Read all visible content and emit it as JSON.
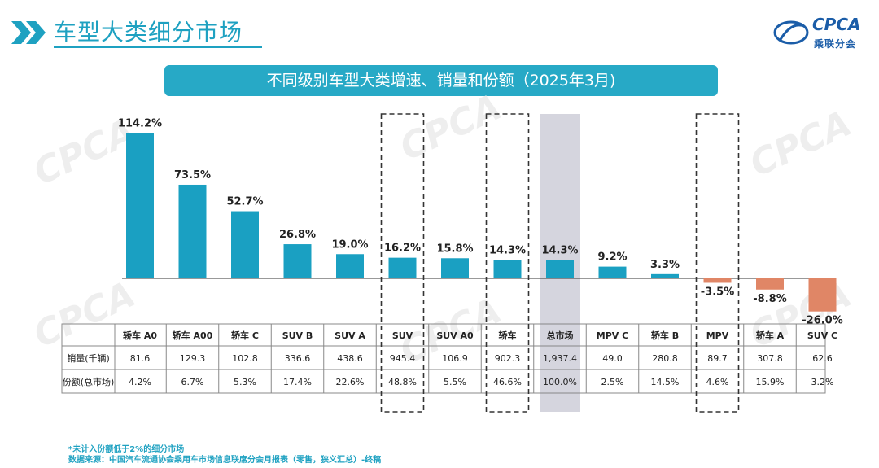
{
  "header": {
    "title": "车型大类细分市场",
    "logo_text": "CPCA",
    "logo_sub": "乘联分会"
  },
  "banner": {
    "text": "不同级别车型大类增速、销量和份额（2025年3月)"
  },
  "watermark_text": "CPCA",
  "colors": {
    "accent": "#1ea1c1",
    "positive_bar": "#1aa0c2",
    "negative_bar": "#e08666",
    "highlight_bg": "#d5d5de",
    "logo": "#1b5da8"
  },
  "chart_data": {
    "type": "bar",
    "categories": [
      "轿车 A0",
      "轿车 A00",
      "轿车 C",
      "SUV B",
      "SUV A",
      "SUV",
      "SUV A0",
      "轿车",
      "总市场",
      "MPV C",
      "轿车 B",
      "MPV",
      "轿车 A",
      "SUV C"
    ],
    "series": [
      {
        "values": [
          114.2,
          73.5,
          52.7,
          26.8,
          19.0,
          16.2,
          15.8,
          14.3,
          14.3,
          9.2,
          3.3,
          -3.5,
          -8.8,
          -26.0
        ]
      }
    ],
    "value_labels": [
      "114.2%",
      "73.5%",
      "52.7%",
      "26.8%",
      "19.0%",
      "16.2%",
      "15.8%",
      "14.3%",
      "14.3%",
      "9.2%",
      "3.3%",
      "-3.5%",
      "-8.8%",
      "-26.0%"
    ],
    "ylim": [
      -30,
      120
    ],
    "dashed_boxes": [
      "SUV",
      "轿车",
      "MPV"
    ],
    "highlighted": "总市场"
  },
  "table": {
    "row_headers": [
      "销量(千辆)",
      "份额(总市场)"
    ],
    "rows": [
      [
        "81.6",
        "129.3",
        "102.8",
        "336.6",
        "438.6",
        "945.4",
        "106.9",
        "902.3",
        "1,937.4",
        "49.0",
        "280.8",
        "89.7",
        "307.8",
        "62.6"
      ],
      [
        "4.2%",
        "6.7%",
        "5.3%",
        "17.4%",
        "22.6%",
        "48.8%",
        "5.5%",
        "46.6%",
        "100.0%",
        "2.5%",
        "14.5%",
        "4.6%",
        "15.9%",
        "3.2%"
      ]
    ]
  },
  "footer": {
    "note": "*未计入份额低于2%的细分市场",
    "source": "数据来源：中国汽车流通协会乘用车市场信息联席分会月报表（零售，狭义汇总）-终稿"
  }
}
